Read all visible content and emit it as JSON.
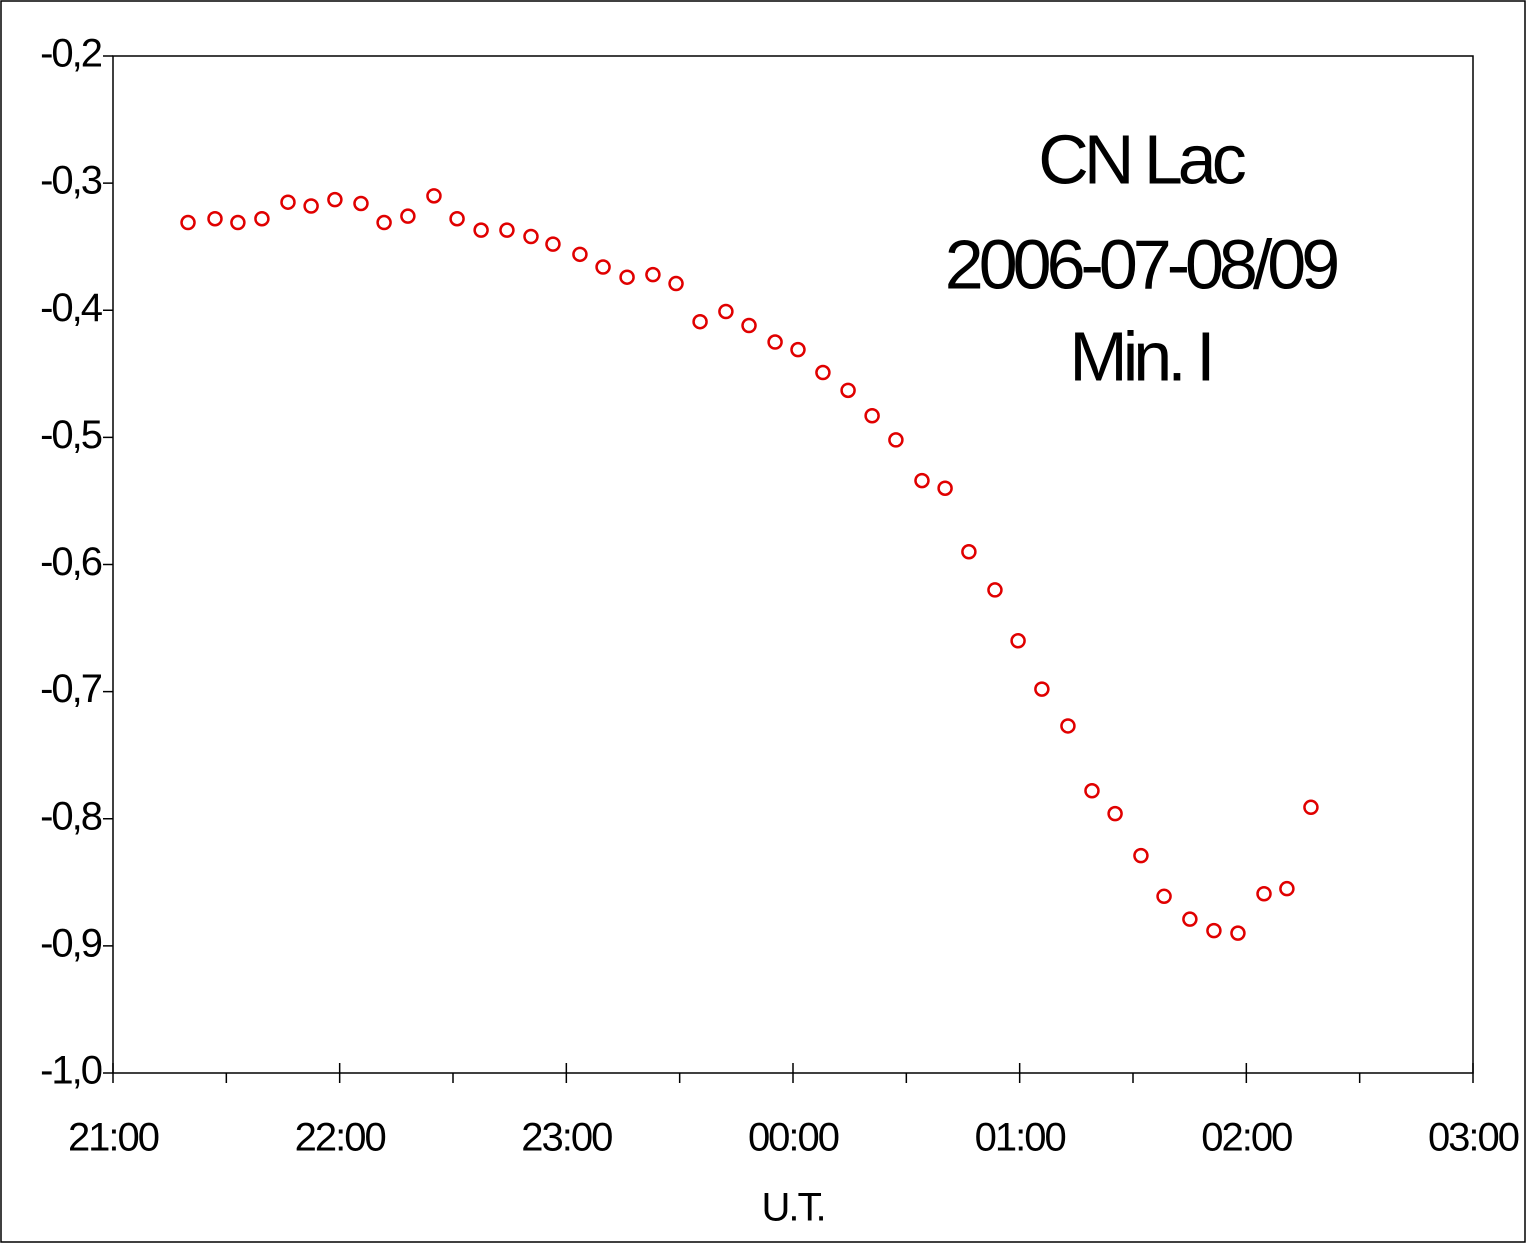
{
  "chart_data": {
    "type": "scatter",
    "title": [
      "CN Lac",
      "2006-07-08/09",
      "Min. I"
    ],
    "x_label": "U.T.",
    "series": [
      {
        "color": "#e00000",
        "x": [
          21.331,
          21.45,
          21.551,
          21.657,
          21.772,
          21.874,
          21.979,
          22.094,
          22.196,
          22.301,
          22.416,
          22.518,
          22.624,
          22.738,
          22.844,
          22.941,
          23.06,
          23.162,
          23.268,
          23.382,
          23.484,
          23.59,
          23.704,
          23.806,
          23.921,
          24.022,
          24.132,
          24.243,
          24.349,
          24.454,
          24.569,
          24.671,
          24.776,
          24.891,
          24.993,
          25.098,
          25.213,
          25.319,
          25.421,
          25.535,
          25.637,
          25.751,
          25.857,
          25.963,
          26.078,
          26.179,
          26.285
        ],
        "values": [
          -0.331,
          -0.328,
          -0.331,
          -0.328,
          -0.315,
          -0.318,
          -0.313,
          -0.316,
          -0.331,
          -0.326,
          -0.31,
          -0.328,
          -0.337,
          -0.337,
          -0.342,
          -0.348,
          -0.356,
          -0.366,
          -0.374,
          -0.372,
          -0.379,
          -0.409,
          -0.401,
          -0.412,
          -0.425,
          -0.431,
          -0.449,
          -0.463,
          -0.483,
          -0.502,
          -0.534,
          -0.54,
          -0.59,
          -0.62,
          -0.66,
          -0.698,
          -0.727,
          -0.778,
          -0.796,
          -0.829,
          -0.861,
          -0.879,
          -0.888,
          -0.89,
          -0.859,
          -0.855,
          -0.791
        ]
      }
    ],
    "xlim": [
      21,
      27
    ],
    "xticks": [
      {
        "value": 21,
        "label": "21:00"
      },
      {
        "value": 22,
        "label": "22:00"
      },
      {
        "value": 23,
        "label": "23:00"
      },
      {
        "value": 24,
        "label": "00:00"
      },
      {
        "value": 25,
        "label": "01:00"
      },
      {
        "value": 26,
        "label": "02:00"
      },
      {
        "value": 27,
        "label": "03:00"
      }
    ],
    "xminorticks": [
      21.5,
      22.5,
      23.5,
      24.5,
      25.5,
      26.5
    ],
    "ylim": [
      -1.0,
      -0.2
    ],
    "yticks": [
      {
        "value": -1.0,
        "label": "-1,0"
      },
      {
        "value": -0.9,
        "label": "-0,9"
      },
      {
        "value": -0.8,
        "label": "-0,8"
      },
      {
        "value": -0.7,
        "label": "-0,7"
      },
      {
        "value": -0.6,
        "label": "-0,6"
      },
      {
        "value": -0.5,
        "label": "-0,5"
      },
      {
        "value": -0.4,
        "label": "-0,4"
      },
      {
        "value": -0.3,
        "label": "-0,3"
      },
      {
        "value": -0.2,
        "label": "-0,2"
      }
    ]
  }
}
